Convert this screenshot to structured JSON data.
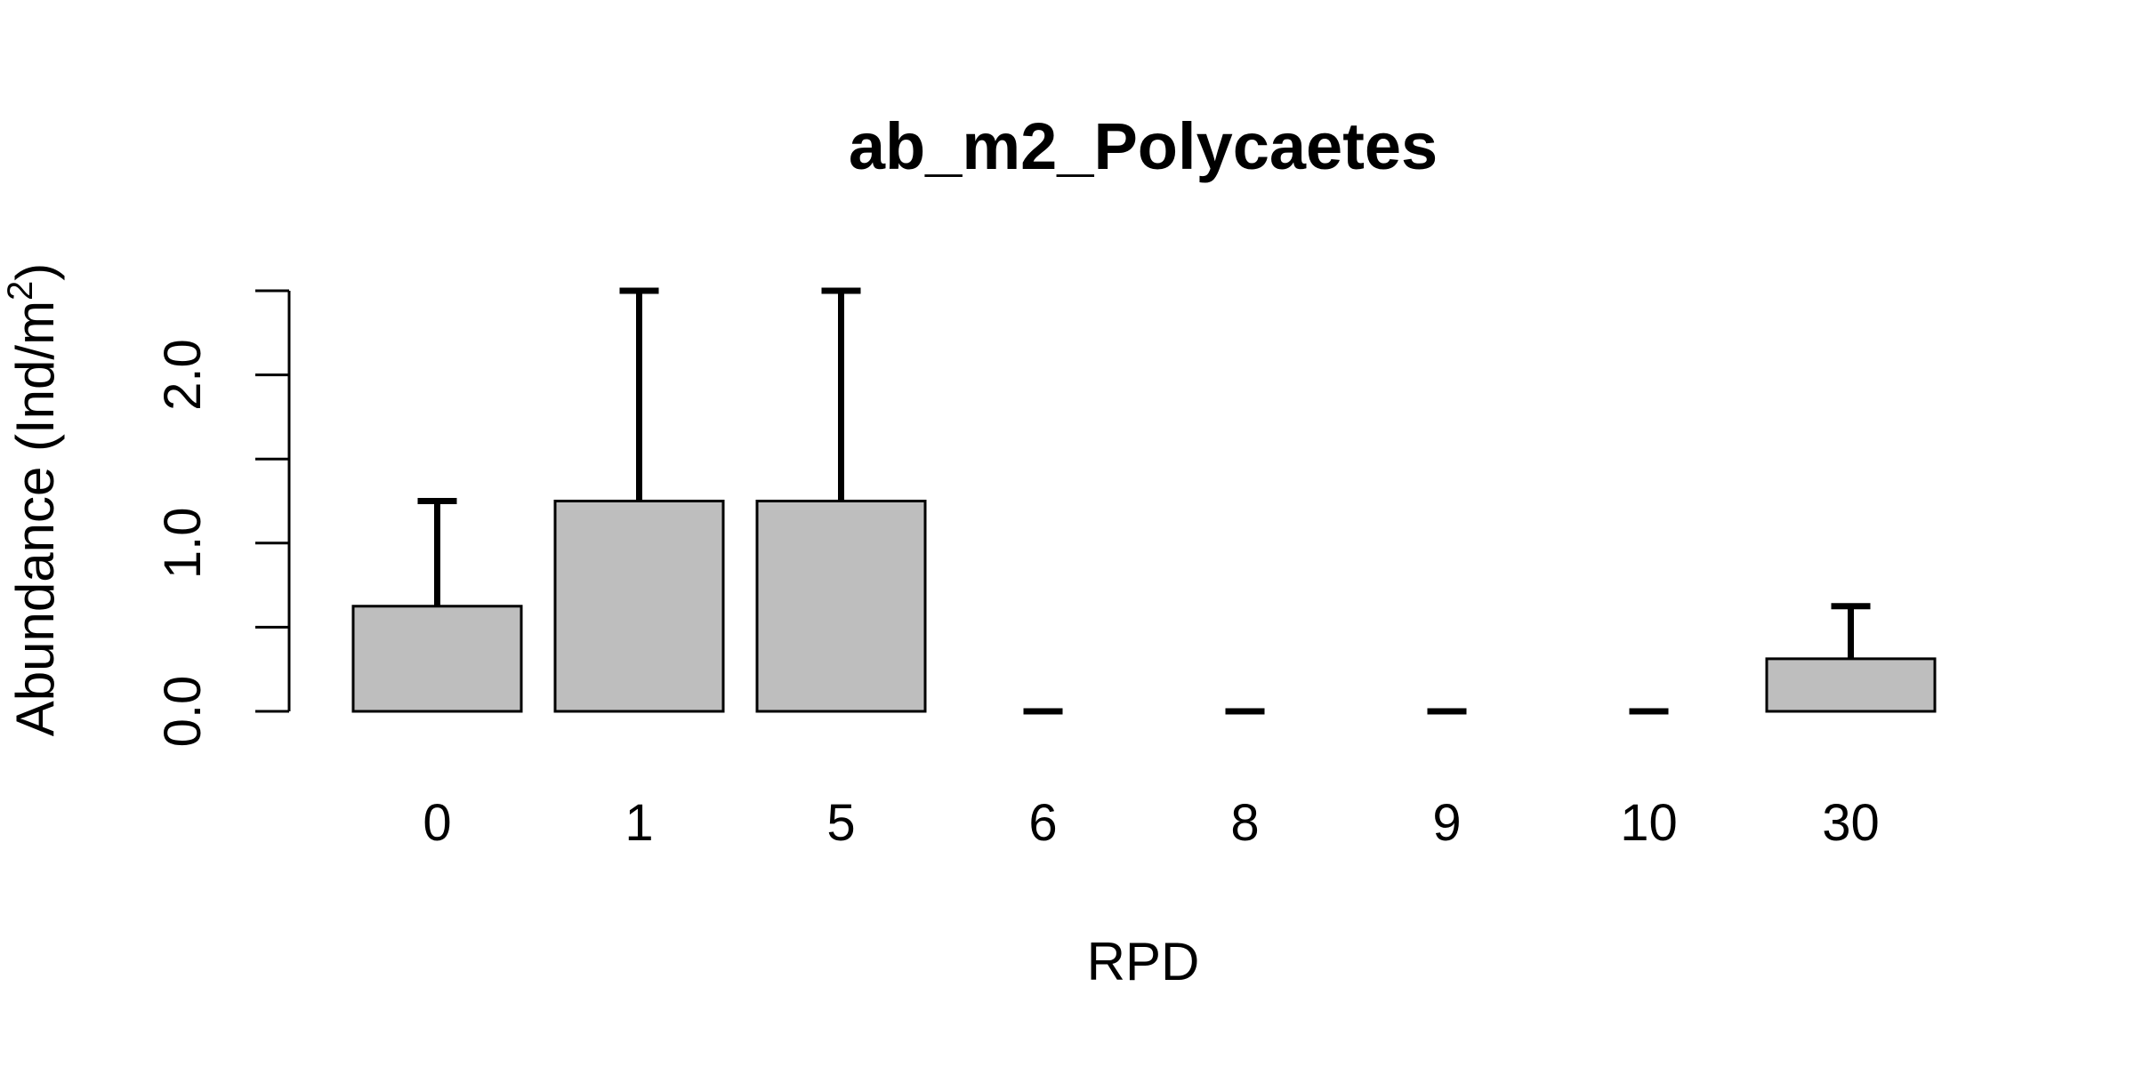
{
  "chart_data": {
    "type": "bar",
    "title": "ab_m2_Polycaetes",
    "xlabel": "RPD",
    "ylabel_main": "Abundance (Ind/m",
    "ylabel_sup": "2",
    "ylabel_close": ")",
    "categories": [
      "0",
      "1",
      "5",
      "6",
      "8",
      "9",
      "10",
      "30"
    ],
    "values": [
      0.625,
      1.25,
      1.25,
      0,
      0,
      0,
      0,
      0.3125
    ],
    "error_upper": [
      1.25,
      2.5,
      2.5,
      0,
      0,
      0,
      0,
      0.625
    ],
    "y_ticks": [
      0.0,
      0.5,
      1.0,
      1.5,
      2.0,
      2.5
    ],
    "y_tick_labels": [
      "0.0",
      "",
      "1.0",
      "",
      "2.0",
      ""
    ],
    "ylim": [
      0,
      2.5
    ],
    "grid": false,
    "bar_color": "#bebebe",
    "edge_color": "#000000"
  }
}
